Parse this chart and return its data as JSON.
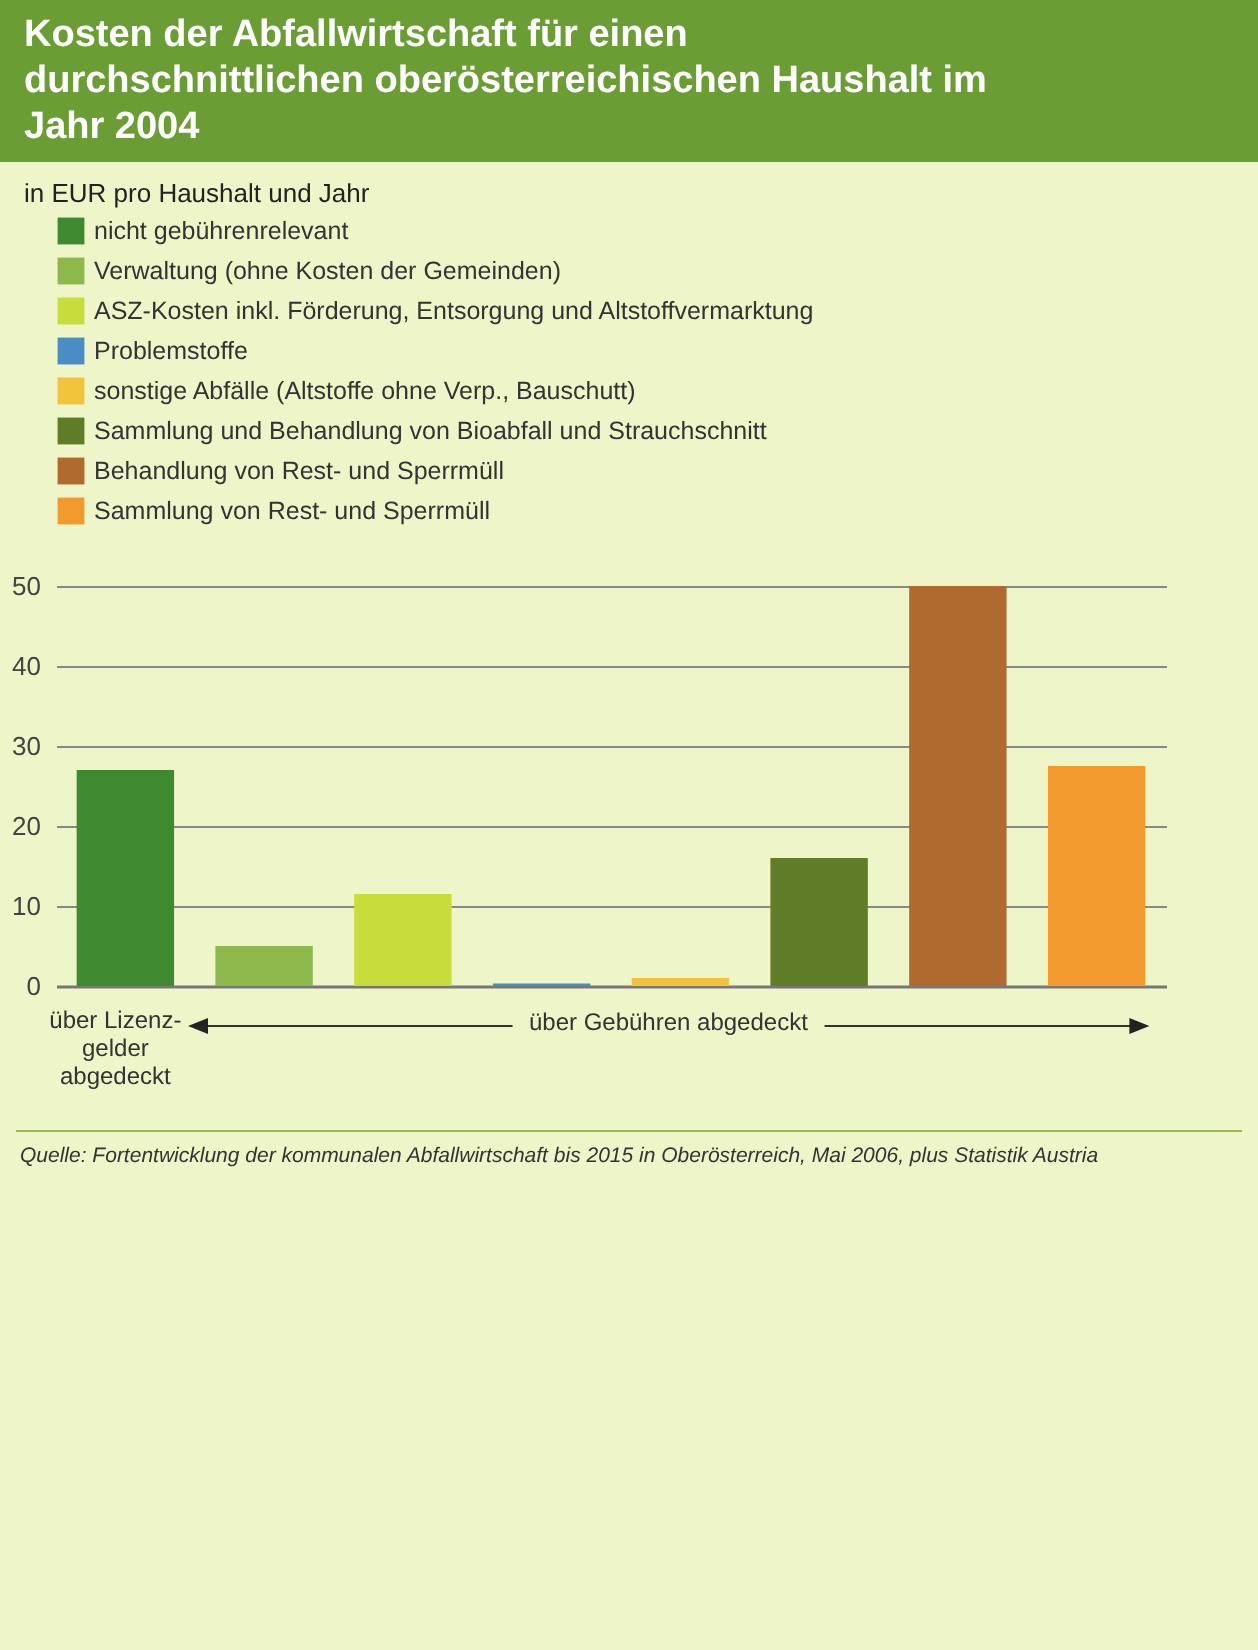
{
  "chart_data": {
    "type": "bar",
    "title": "Kosten der Abfallwirtschaft für einen durchschnittlichen oberösterreichischen Haushalt im Jahr 2004",
    "subtitle": "in EUR pro Haushalt und Jahr",
    "categories": [
      null,
      null,
      null,
      null,
      null,
      null,
      null,
      null
    ],
    "series": [
      {
        "name": "nicht gebührenrelevant",
        "color": "#3f8a2e",
        "values": [
          27,
          null,
          null,
          null,
          null,
          null,
          null,
          null
        ]
      },
      {
        "name": "Verwaltung (ohne Kosten der Gemeinden)",
        "color": "#8db84c",
        "values": [
          null,
          5,
          null,
          null,
          null,
          null,
          null,
          null
        ]
      },
      {
        "name": "ASZ-Kosten inkl. Förderung, Entsorgung und Altstoffvermarktung",
        "color": "#c8dc3c",
        "values": [
          null,
          null,
          11.5,
          null,
          null,
          null,
          null,
          null
        ]
      },
      {
        "name": "Problemstoffe",
        "color": "#4a8cc4",
        "values": [
          null,
          null,
          null,
          0.3,
          null,
          null,
          null,
          null
        ]
      },
      {
        "name": "sonstige Abfälle (Altstoffe ohne Verp., Bauschutt)",
        "color": "#f2c43c",
        "values": [
          null,
          null,
          null,
          null,
          1,
          null,
          null,
          null
        ]
      },
      {
        "name": "Sammlung und Behandlung von Bioabfall und Strauchschnitt",
        "color": "#5f7c26",
        "values": [
          null,
          null,
          null,
          null,
          null,
          16,
          null,
          null
        ]
      },
      {
        "name": "Behandlung von Rest- und Sperrmüll",
        "color": "#b0692e",
        "values": [
          null,
          null,
          null,
          null,
          null,
          null,
          50,
          null
        ]
      },
      {
        "name": "Sammlung von Rest- und Sperrmüll",
        "color": "#f29a2e",
        "values": [
          null,
          null,
          null,
          null,
          null,
          null,
          null,
          27.5
        ]
      }
    ],
    "ylim": [
      0,
      50
    ],
    "yticks": [
      0,
      10,
      20,
      30,
      40,
      50
    ],
    "grid": "y",
    "legend": "top",
    "tick_labels": "y",
    "annotations": [
      "über Lizenz-gelder abgedeckt",
      "über Gebühren abgedeckt",
      "Quelle: Fortentwicklung der kommunalen Abfallwirtschaft bis 2015 in Oberösterreich, Mai 2006, plus Statistik Austria"
    ]
  }
}
